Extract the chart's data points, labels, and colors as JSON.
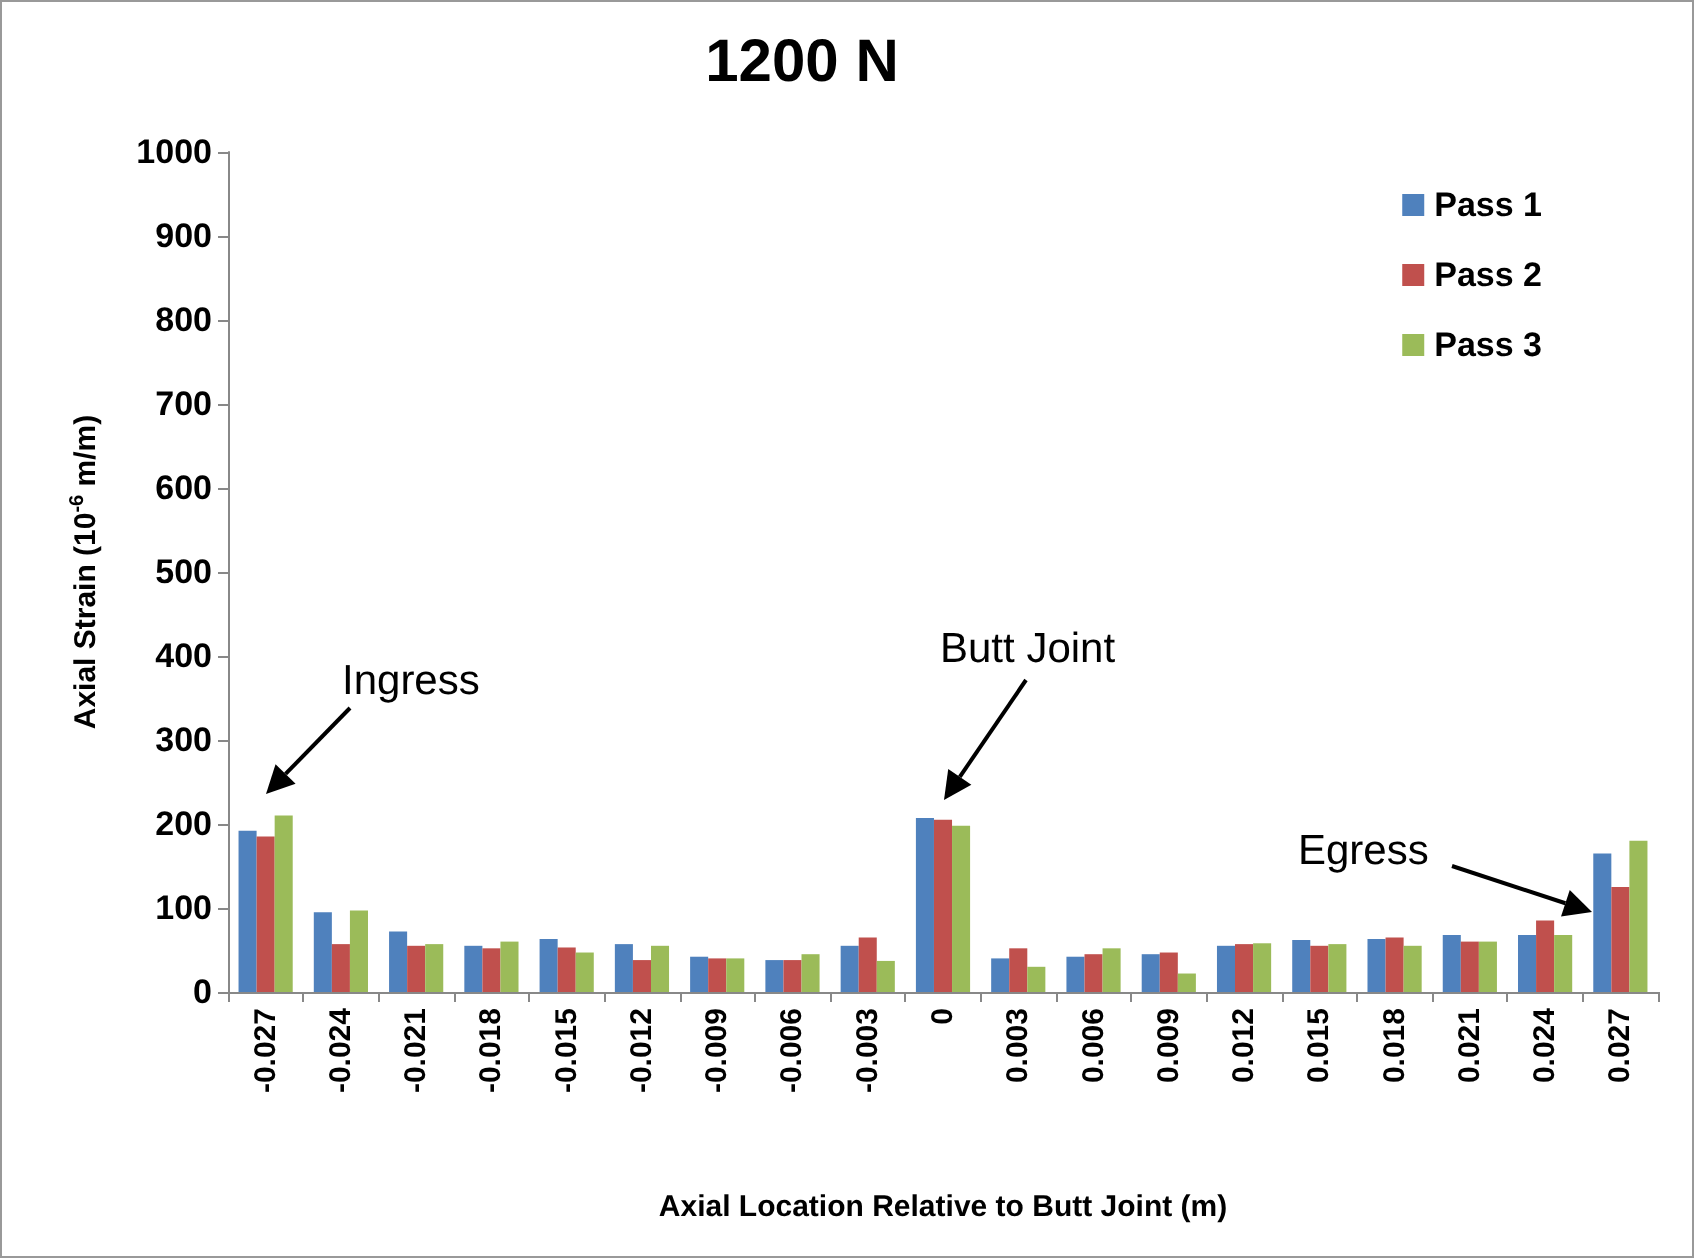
{
  "chart_data": {
    "type": "bar",
    "title": "1200 N",
    "xlabel": "Axial Location Relative to Butt Joint (m)",
    "ylabel": "Axial Strain (10$^{-6}$ m/m)",
    "categories": [
      "-0.027",
      "-0.024",
      "-0.021",
      "-0.018",
      "-0.015",
      "-0.012",
      "-0.009",
      "-0.006",
      "-0.003",
      "0",
      "0.003",
      "0.006",
      "0.009",
      "0.012",
      "0.015",
      "0.018",
      "0.021",
      "0.024",
      "0.027"
    ],
    "series": [
      {
        "name": "Pass 1",
        "color": "#4f81bd",
        "values": [
          192,
          95,
          72,
          55,
          63,
          57,
          42,
          38,
          55,
          207,
          40,
          42,
          45,
          55,
          62,
          63,
          68,
          68,
          165
        ]
      },
      {
        "name": "Pass 2",
        "color": "#c0504d",
        "values": [
          185,
          57,
          55,
          52,
          53,
          38,
          40,
          38,
          65,
          205,
          52,
          45,
          47,
          57,
          55,
          65,
          60,
          85,
          125
        ]
      },
      {
        "name": "Pass 3",
        "color": "#9bbb59",
        "values": [
          210,
          97,
          57,
          60,
          47,
          55,
          40,
          45,
          37,
          198,
          30,
          52,
          22,
          58,
          57,
          55,
          60,
          68,
          180
        ]
      }
    ],
    "ylim": [
      0,
      1000
    ],
    "yticks": [
      0,
      100,
      200,
      300,
      400,
      500,
      600,
      700,
      800,
      900,
      1000
    ],
    "grid": false,
    "legend": "top right",
    "annotations": [
      "Ingress",
      "Butt Joint",
      "Egress"
    ]
  }
}
